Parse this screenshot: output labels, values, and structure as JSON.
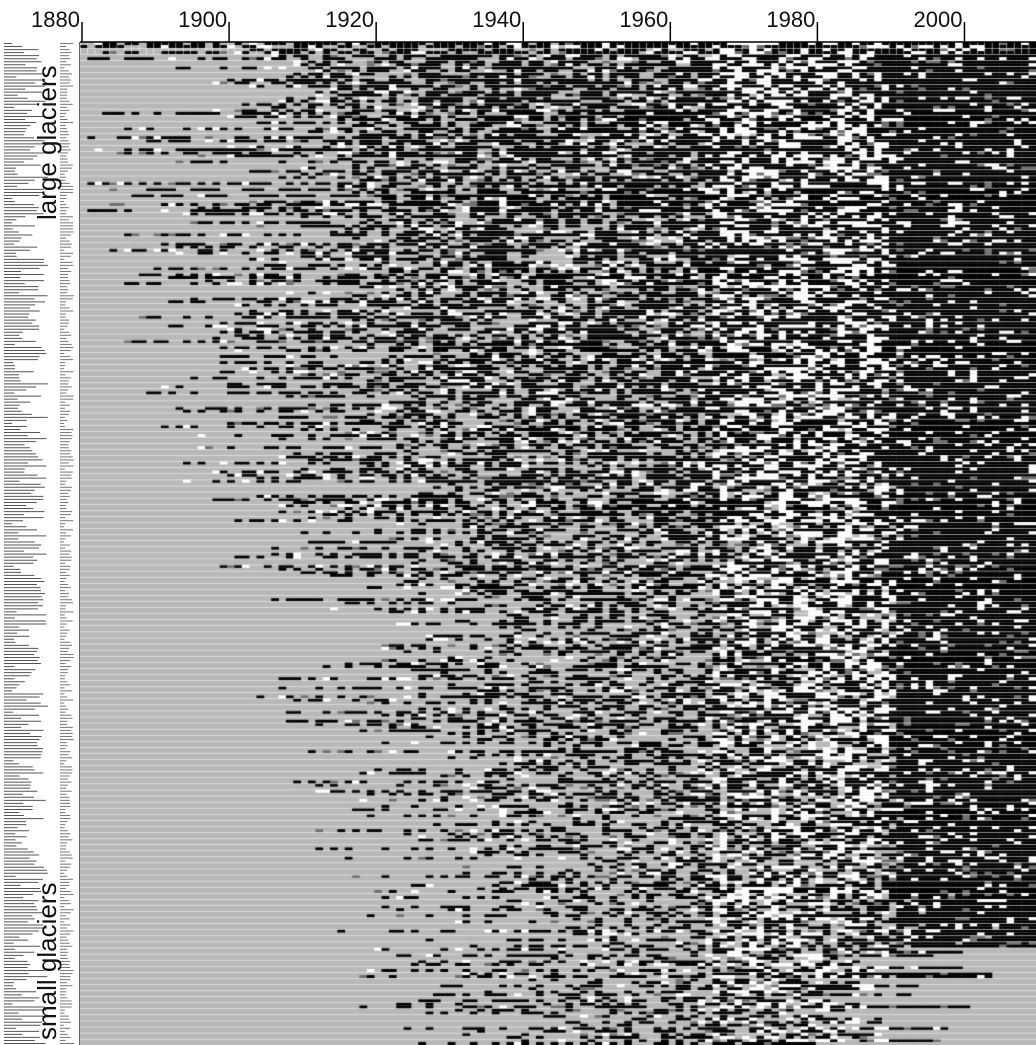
{
  "chart_data": {
    "type": "heatmap",
    "title": "",
    "xlabel": "",
    "ylabel": "",
    "x_range": [
      1880,
      2009
    ],
    "x_ticks": [
      1880,
      1900,
      1920,
      1940,
      1960,
      1980,
      2000
    ],
    "row_groups": [
      {
        "name": "large glaciers",
        "position": "top"
      },
      {
        "name": "small glaciers",
        "position": "bottom"
      }
    ],
    "row_count": 330,
    "colors": {
      "no_data": "#b8b8b8",
      "retreat": "#000000",
      "advance": "#ffffff",
      "stationary": "#707070",
      "row_separator": "#ffffff",
      "axis": "#000000"
    }
  }
}
